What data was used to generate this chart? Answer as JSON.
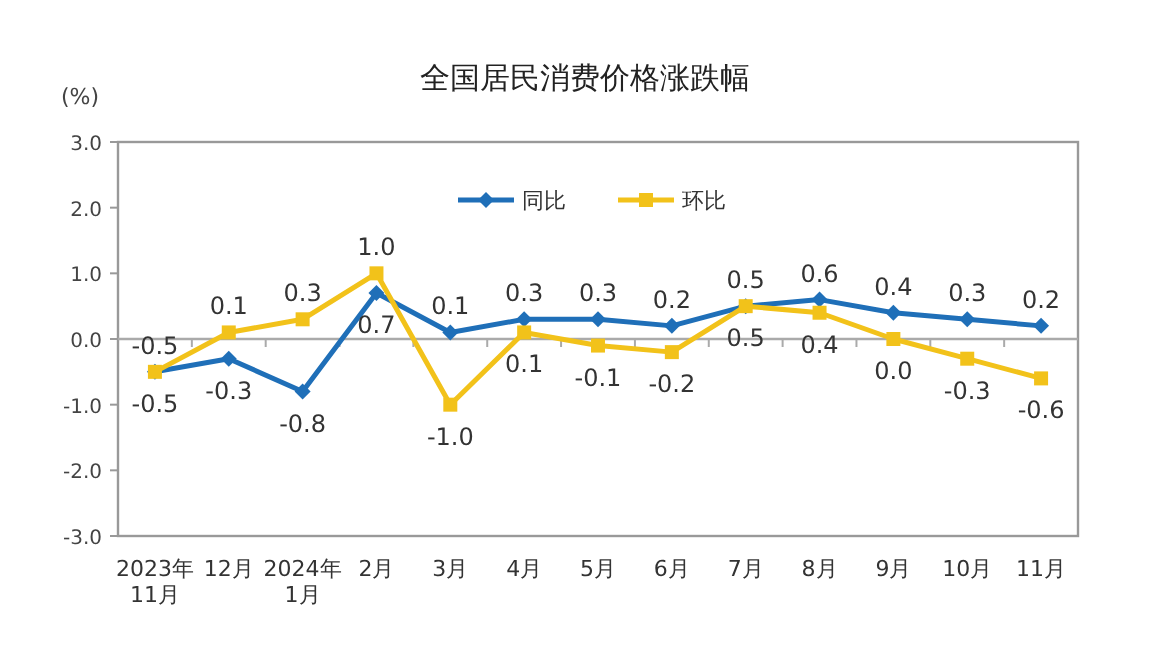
{
  "chart_data": {
    "type": "line",
    "title": "全国居民消费价格涨跌幅",
    "ylabel": "(%)",
    "categories": [
      "2023年\n11月",
      "12月",
      "2024年\n1月",
      "2月",
      "3月",
      "4月",
      "5月",
      "6月",
      "7月",
      "8月",
      "9月",
      "10月",
      "11月"
    ],
    "series": [
      {
        "name": "同比",
        "color": "#1f6fb8",
        "marker": "diamond",
        "values": [
          -0.5,
          -0.3,
          -0.8,
          0.7,
          0.1,
          0.3,
          0.3,
          0.2,
          0.5,
          0.6,
          0.4,
          0.3,
          0.2
        ],
        "value_labels": [
          "-0.5",
          "-0.3",
          "-0.8",
          "0.7",
          "0.1",
          "0.3",
          "0.3",
          "0.2",
          "0.5",
          "0.6",
          "0.4",
          "0.3",
          "0.2"
        ]
      },
      {
        "name": "环比",
        "color": "#f2c21a",
        "marker": "square",
        "values": [
          -0.5,
          0.1,
          0.3,
          1.0,
          -1.0,
          0.1,
          -0.1,
          -0.2,
          0.5,
          0.4,
          0.0,
          -0.3,
          -0.6
        ],
        "value_labels": [
          "-0.5",
          "0.1",
          "0.3",
          "1.0",
          "-1.0",
          "0.1",
          "-0.1",
          "-0.2",
          "0.5",
          "0.4",
          "0.0",
          "-0.3",
          "-0.6"
        ]
      }
    ],
    "ylim": [
      -3,
      3
    ],
    "yticks": [
      {
        "value": -3,
        "label": "-3.0"
      },
      {
        "value": -2,
        "label": "-2.0"
      },
      {
        "value": -1,
        "label": "-1.0"
      },
      {
        "value": 0,
        "label": "0.0"
      },
      {
        "value": 1,
        "label": "1.0"
      },
      {
        "value": 2,
        "label": "2.0"
      },
      {
        "value": 3,
        "label": "3.0"
      }
    ],
    "ref_lines": [
      {
        "axis": "y",
        "value": 0,
        "color": "#aaaaaa"
      }
    ],
    "legend": "top",
    "grid": false,
    "line_style": "solid"
  }
}
